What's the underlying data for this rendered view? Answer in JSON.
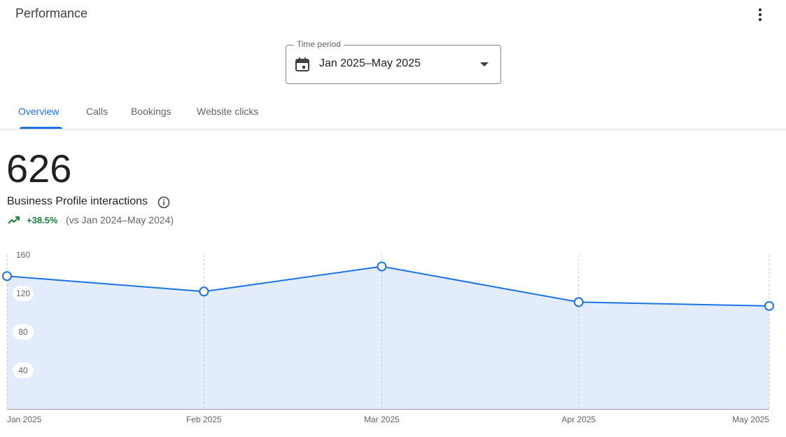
{
  "header": {
    "title": "Performance"
  },
  "time_period": {
    "label": "Time period",
    "value": "Jan 2025–May 2025"
  },
  "tabs": [
    "Overview",
    "Calls",
    "Bookings",
    "Website clicks"
  ],
  "metric": {
    "value": 626,
    "label": "Business Profile interactions",
    "change": "+38.5%",
    "comparison": "(vs Jan 2024–May 2024)"
  },
  "chart_data": {
    "type": "area",
    "x": [
      "Jan 2025",
      "Feb 2025",
      "Mar 2025",
      "Apr 2025",
      "May 2025"
    ],
    "values": [
      138,
      122,
      148,
      111,
      107
    ],
    "color": "#1a73e8",
    "area_color": "#e2ecfb",
    "ylim": [
      0,
      160
    ],
    "yticks": [
      40,
      80,
      120,
      160
    ],
    "grid": true
  }
}
